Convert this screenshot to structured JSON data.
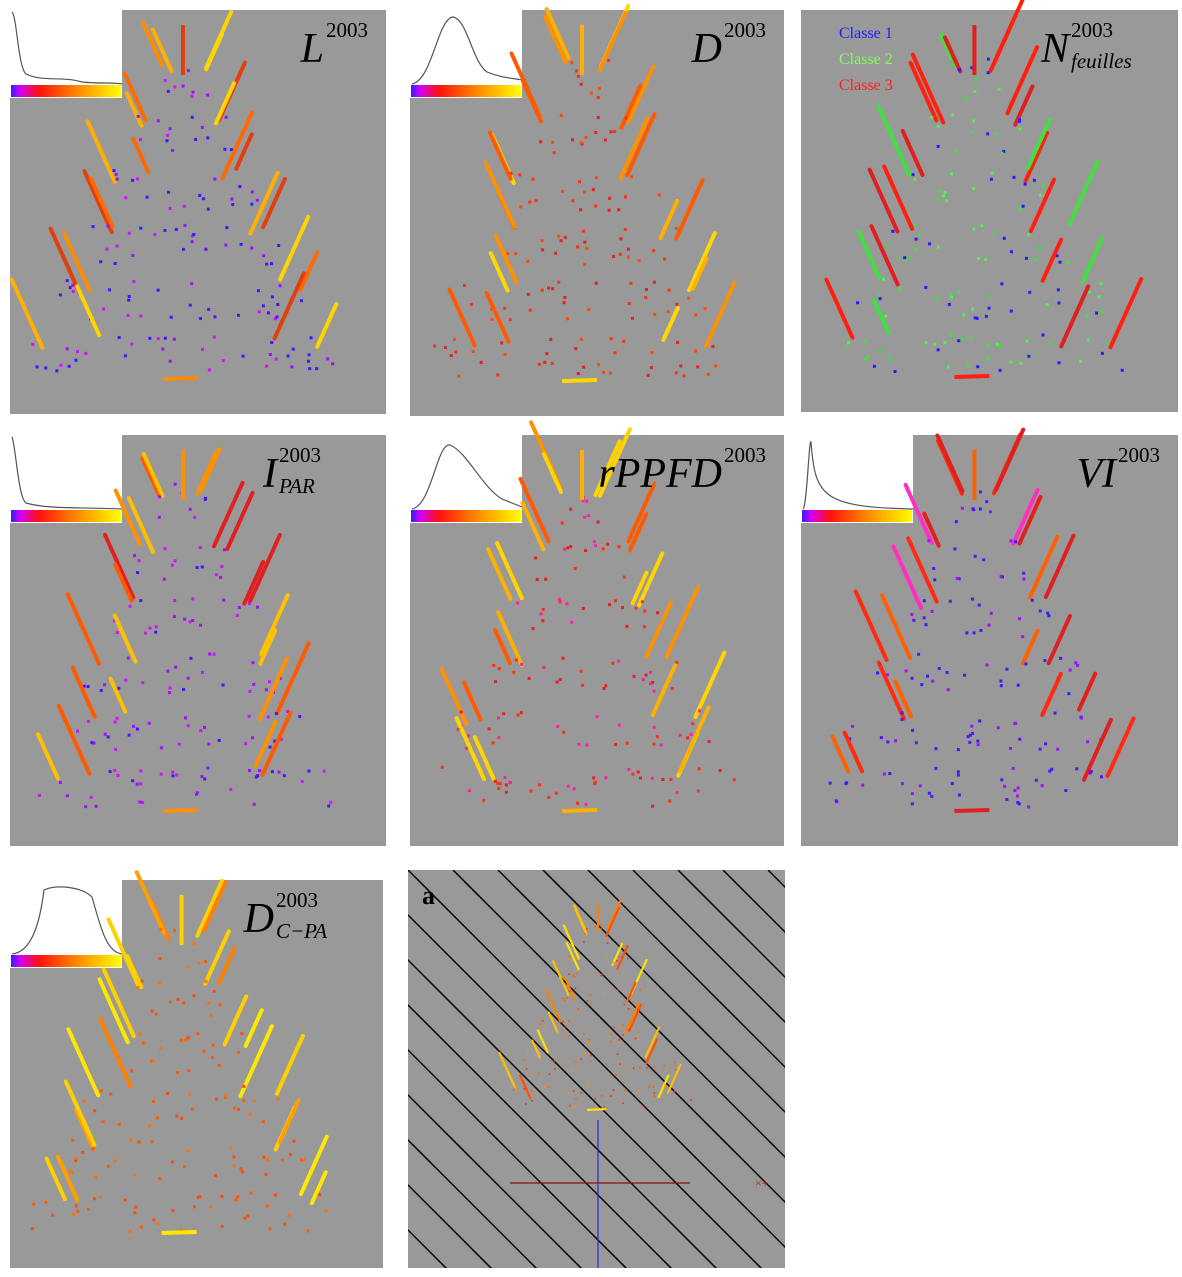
{
  "panels": [
    {
      "label": "L",
      "sup": "2003"
    },
    {
      "label": "D",
      "sup": "2003"
    },
    {
      "label": "N",
      "sup": "2003",
      "sub": "feuilles",
      "legend": [
        "Classe 1",
        "Classe 2",
        "Classe 3"
      ]
    },
    {
      "label": "I",
      "sup": "2003",
      "sub": "PAR"
    },
    {
      "label": "rPPFD",
      "sup": "2003"
    },
    {
      "label": "VI",
      "sup": "2003"
    },
    {
      "label": "D",
      "sup": "2003",
      "sub": "C−PA"
    }
  ],
  "panel_a": {
    "label": "a",
    "axis_mark": "×+"
  }
}
